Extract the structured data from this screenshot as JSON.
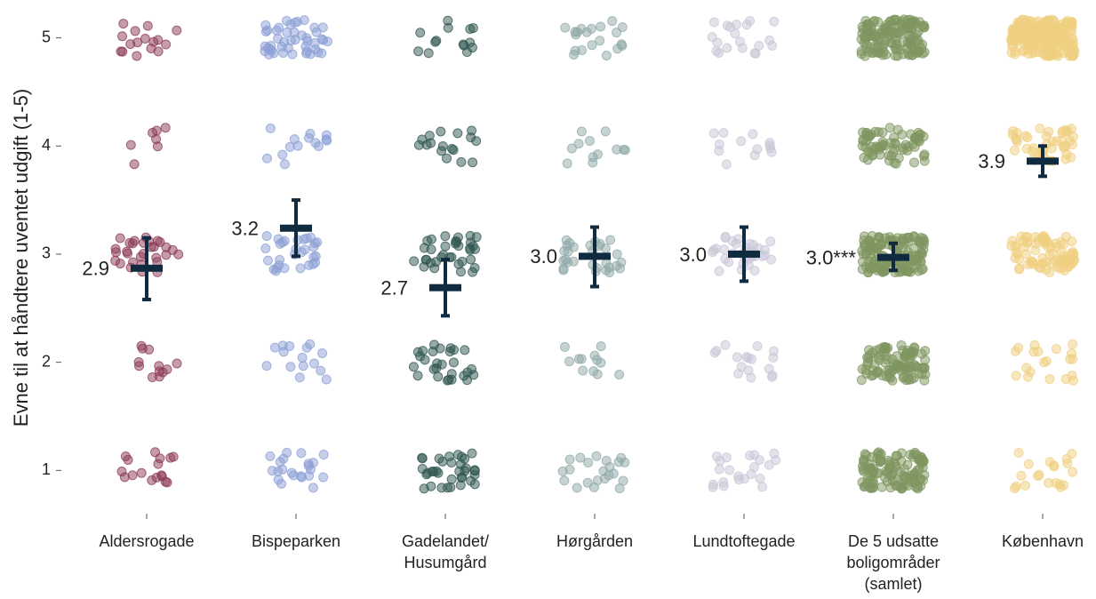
{
  "chart_data": {
    "type": "jitter",
    "y_label": "Evne til at håndtere uventet udgift (1-5)",
    "categories": [
      [
        "Aldersrogade"
      ],
      [
        "Bispeparken"
      ],
      [
        "Gadelandet/",
        "Husumgård"
      ],
      [
        "Hørgården"
      ],
      [
        "Lundtoftegade"
      ],
      [
        "De 5 udsatte",
        "boligområder",
        "(samlet)"
      ],
      [
        "København"
      ]
    ],
    "groups": [
      {
        "color": "#8b3a55",
        "counts": [
          17,
          12,
          30,
          7,
          16
        ]
      },
      {
        "color": "#8c9fd6",
        "counts": [
          22,
          15,
          30,
          14,
          45
        ]
      },
      {
        "color": "#2f5550",
        "counts": [
          35,
          28,
          35,
          17,
          14
        ]
      },
      {
        "color": "#8fa8a8",
        "counts": [
          22,
          12,
          30,
          12,
          20
        ]
      },
      {
        "color": "#c8c6d6",
        "counts": [
          22,
          17,
          35,
          13,
          20
        ]
      },
      {
        "color": "#7f9560",
        "counts": [
          120,
          100,
          150,
          70,
          150
        ]
      },
      {
        "color": "#f0cf80",
        "counts": [
          20,
          20,
          80,
          45,
          200
        ]
      }
    ],
    "values": [
      2.87,
      3.24,
      2.69,
      2.98,
      3.0,
      2.97,
      3.86
    ],
    "value_labels": [
      "2.9",
      "3.2",
      "2.7",
      "3.0",
      "3.0",
      "3.0***",
      "3.9"
    ],
    "errors_low": [
      2.58,
      2.98,
      2.43,
      2.7,
      2.75,
      2.85,
      3.72
    ],
    "errors_high": [
      3.15,
      3.5,
      2.95,
      3.25,
      3.25,
      3.1,
      4.0
    ],
    "mean_color": "#102a40",
    "ylim": [
      0.6,
      5.35
    ],
    "yticks": [
      1,
      2,
      3,
      4,
      5
    ]
  }
}
